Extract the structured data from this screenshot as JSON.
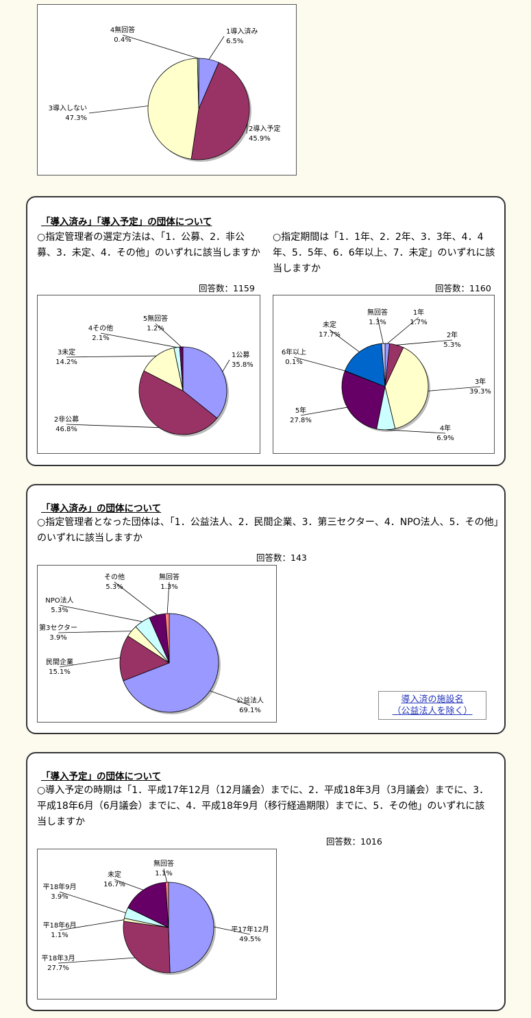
{
  "panels": [
    {
      "title": "「導入済み」「導入予定」の団体について"
    },
    {
      "title": "「導入済み」の団体について",
      "question": "○指定管理者となった団体は、「1．公益法人、2．民間企業、3．第三セクター、4．NPO法人、5．その他」のいずれに該当しますか",
      "count": "回答数：143",
      "link_line1": "導入済の施設名",
      "link_line2": "（公益法人を除く）"
    },
    {
      "title": "「導入予定」の団体について",
      "question": "○導入予定の時期は「1．平成17年12月（12月議会）までに、2．平成18年3月（3月議会）までに、3．平成18年6月（6月議会）までに、4．平成18年9月（移行経過期限）までに、5．その他」のいずれに該当しますか",
      "count": "回答数：1016"
    }
  ],
  "panel1_questions": [
    {
      "text": "○指定管理者の選定方法は、「1．公募、2．非公募、3．未定、4．その他」のいずれに該当しますか",
      "count": "回答数：1159"
    },
    {
      "text": "○指定期間は「1．1年、2．2年、3．3年、4．4年、5．5年、6．6年以上、7．未定」のいずれに該当しますか",
      "count": "回答数：1160"
    }
  ],
  "chart_data": [
    {
      "type": "pie",
      "slices": [
        {
          "label": "1導入済み",
          "value": 6.5,
          "pct": "6.5%",
          "color": "#9999FF"
        },
        {
          "label": "2導入予定",
          "value": 45.9,
          "pct": "45.9%",
          "color": "#993366"
        },
        {
          "label": "3導入しない",
          "value": 47.3,
          "pct": "47.3%",
          "color": "#FFFFCC"
        },
        {
          "label": "4無回答",
          "value": 0.4,
          "pct": "0.4%",
          "color": "#CCFFFF"
        }
      ]
    },
    {
      "type": "pie",
      "slices": [
        {
          "label": "1公募",
          "value": 35.8,
          "pct": "35.8%",
          "color": "#9999FF"
        },
        {
          "label": "2非公募",
          "value": 46.8,
          "pct": "46.8%",
          "color": "#993366"
        },
        {
          "label": "3未定",
          "value": 14.2,
          "pct": "14.2%",
          "color": "#FFFFCC"
        },
        {
          "label": "4その他",
          "value": 2.1,
          "pct": "2.1%",
          "color": "#CCFFFF"
        },
        {
          "label": "5無回答",
          "value": 1.2,
          "pct": "1.2%",
          "color": "#660066"
        }
      ]
    },
    {
      "type": "pie",
      "slices": [
        {
          "label": "1年",
          "value": 1.7,
          "pct": "1.7%",
          "color": "#9999FF"
        },
        {
          "label": "2年",
          "value": 5.3,
          "pct": "5.3%",
          "color": "#993366"
        },
        {
          "label": "3年",
          "value": 39.3,
          "pct": "39.3%",
          "color": "#FFFFCC"
        },
        {
          "label": "4年",
          "value": 6.9,
          "pct": "6.9%",
          "color": "#CCFFFF"
        },
        {
          "label": "5年",
          "value": 27.8,
          "pct": "27.8%",
          "color": "#660066"
        },
        {
          "label": "6年以上",
          "value": 0.1,
          "pct": "0.1%",
          "color": "#FF8080"
        },
        {
          "label": "未定",
          "value": 17.7,
          "pct": "17.7%",
          "color": "#0066CC"
        },
        {
          "label": "無回答",
          "value": 1.3,
          "pct": "1.3%",
          "color": "#CCCCFF"
        }
      ]
    },
    {
      "type": "pie",
      "slices": [
        {
          "label": "公益法人",
          "value": 69.1,
          "pct": "69.1%",
          "color": "#9999FF"
        },
        {
          "label": "民間企業",
          "value": 15.1,
          "pct": "15.1%",
          "color": "#993366"
        },
        {
          "label": "第3セクター",
          "value": 3.9,
          "pct": "3.9%",
          "color": "#FFFFCC"
        },
        {
          "label": "NPO法人",
          "value": 5.3,
          "pct": "5.3%",
          "color": "#CCFFFF"
        },
        {
          "label": "その他",
          "value": 5.3,
          "pct": "5.3%",
          "color": "#660066"
        },
        {
          "label": "無回答",
          "value": 1.3,
          "pct": "1.3%",
          "color": "#FF8080"
        }
      ]
    },
    {
      "type": "pie",
      "slices": [
        {
          "label": "平17年12月",
          "value": 49.5,
          "pct": "49.5%",
          "color": "#9999FF"
        },
        {
          "label": "平18年3月",
          "value": 27.7,
          "pct": "27.7%",
          "color": "#993366"
        },
        {
          "label": "平18年6月",
          "value": 1.1,
          "pct": "1.1%",
          "color": "#FFFFCC"
        },
        {
          "label": "平18年9月",
          "value": 3.9,
          "pct": "3.9%",
          "color": "#CCFFFF"
        },
        {
          "label": "未定",
          "value": 16.7,
          "pct": "16.7%",
          "color": "#660066"
        },
        {
          "label": "無回答",
          "value": 1.1,
          "pct": "1.1%",
          "color": "#FF8080"
        }
      ]
    }
  ]
}
